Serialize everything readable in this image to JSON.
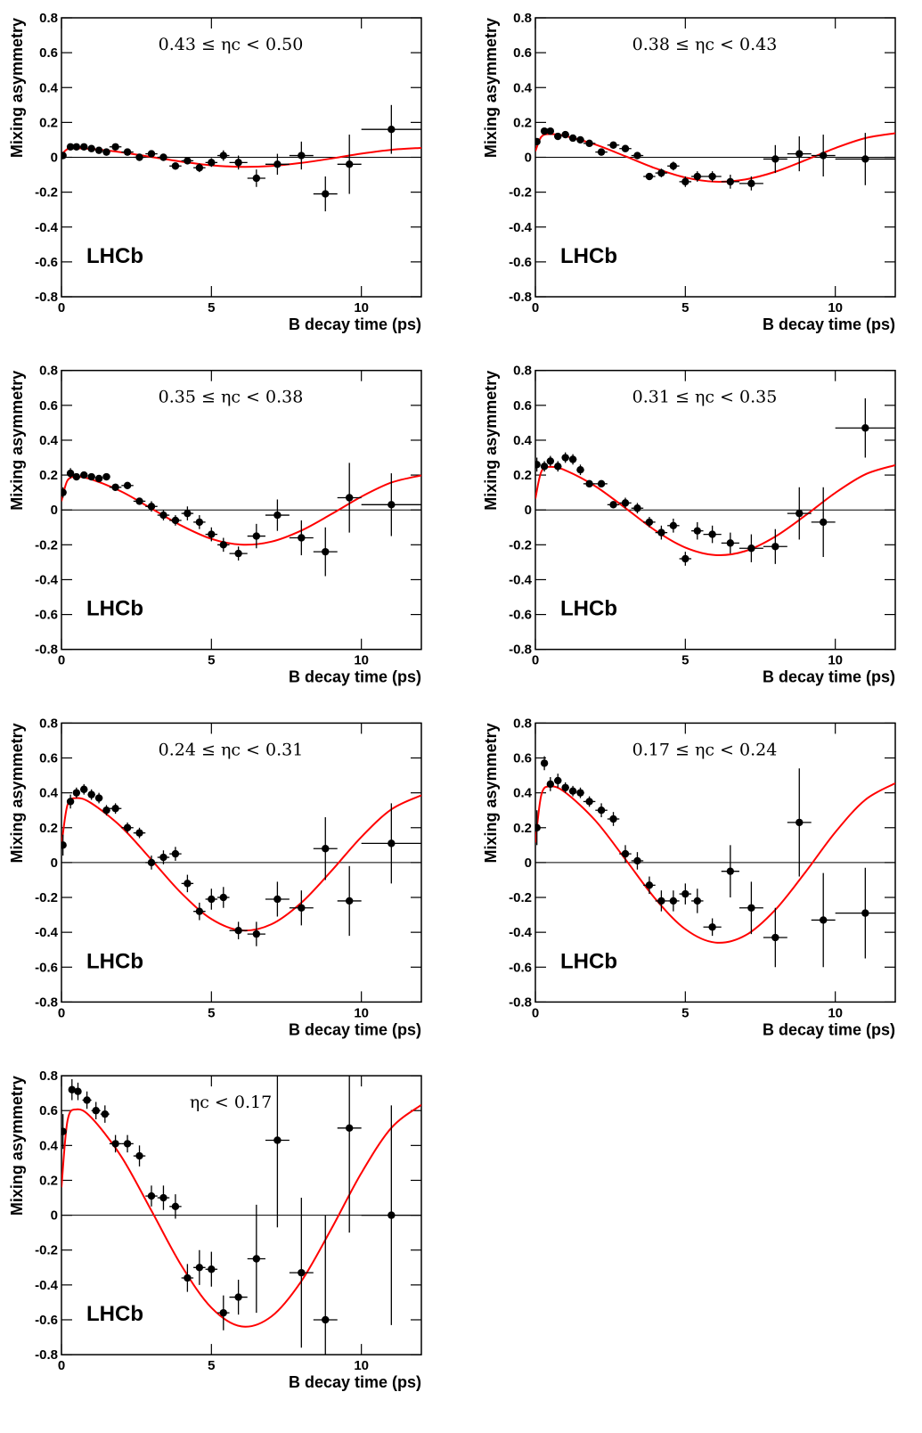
{
  "chart_data": [
    {
      "type": "scatter",
      "title": "0.43 ≤ ηc < 0.50",
      "xlabel": "B decay time (ps)",
      "ylabel": "Mixing asymmetry",
      "label": "LHCb",
      "xlim": [
        0,
        12
      ],
      "xticks": [
        0,
        5,
        10
      ],
      "ylim": [
        -0.8,
        0.8
      ],
      "yticks": [
        -0.8,
        -0.6,
        -0.4,
        -0.2,
        0,
        0.2,
        0.4,
        0.6,
        0.8
      ],
      "color": "#000000",
      "x": [
        0.05,
        0.3,
        0.5,
        0.75,
        1.0,
        1.25,
        1.5,
        1.8,
        2.2,
        2.6,
        3.0,
        3.4,
        3.8,
        4.2,
        4.6,
        5.0,
        5.4,
        5.9,
        6.5,
        7.2,
        8.0,
        8.8,
        9.6,
        11.0
      ],
      "x_errors": [
        0.05,
        0.1,
        0.1,
        0.125,
        0.125,
        0.125,
        0.125,
        0.2,
        0.2,
        0.2,
        0.2,
        0.2,
        0.2,
        0.2,
        0.2,
        0.2,
        0.2,
        0.3,
        0.3,
        0.4,
        0.4,
        0.4,
        0.4,
        1.0
      ],
      "values": [
        0.01,
        0.06,
        0.06,
        0.06,
        0.05,
        0.04,
        0.03,
        0.06,
        0.03,
        0.0,
        0.02,
        0.0,
        -0.05,
        -0.02,
        -0.06,
        -0.03,
        0.01,
        -0.03,
        -0.12,
        -0.04,
        0.01,
        -0.21,
        -0.04,
        0.16
      ],
      "errors": [
        0.01,
        0.01,
        0.01,
        0.01,
        0.01,
        0.01,
        0.01,
        0.01,
        0.015,
        0.015,
        0.015,
        0.02,
        0.02,
        0.02,
        0.025,
        0.025,
        0.03,
        0.04,
        0.05,
        0.06,
        0.08,
        0.1,
        0.17,
        0.14
      ],
      "fit": {
        "color": "#ff0000",
        "x": [
          0,
          0.2,
          0.5,
          1,
          2,
          3,
          4,
          5,
          6,
          7,
          8,
          9,
          10,
          11,
          12
        ],
        "values": [
          0.014,
          0.047,
          0.052,
          0.048,
          0.029,
          0.002,
          -0.025,
          -0.046,
          -0.055,
          -0.05,
          -0.032,
          -0.007,
          0.021,
          0.043,
          0.054
        ]
      }
    },
    {
      "type": "scatter",
      "title": "0.38 ≤ ηc < 0.43",
      "xlabel": "B decay time (ps)",
      "ylabel": "Mixing asymmetry",
      "label": "LHCb",
      "xlim": [
        0,
        12
      ],
      "xticks": [
        0,
        5,
        10
      ],
      "ylim": [
        -0.8,
        0.8
      ],
      "yticks": [
        -0.8,
        -0.6,
        -0.4,
        -0.2,
        0,
        0.2,
        0.4,
        0.6,
        0.8
      ],
      "color": "#000000",
      "x": [
        0.05,
        0.3,
        0.5,
        0.75,
        1.0,
        1.25,
        1.5,
        1.8,
        2.2,
        2.6,
        3.0,
        3.4,
        3.8,
        4.2,
        4.6,
        5.0,
        5.4,
        5.9,
        6.5,
        7.2,
        8.0,
        8.8,
        9.6,
        11.0
      ],
      "x_errors": [
        0.05,
        0.1,
        0.1,
        0.125,
        0.125,
        0.125,
        0.125,
        0.2,
        0.2,
        0.2,
        0.2,
        0.2,
        0.2,
        0.2,
        0.2,
        0.2,
        0.2,
        0.3,
        0.3,
        0.4,
        0.4,
        0.4,
        0.4,
        1.0
      ],
      "values": [
        0.09,
        0.15,
        0.15,
        0.12,
        0.13,
        0.11,
        0.1,
        0.08,
        0.03,
        0.07,
        0.05,
        0.01,
        -0.11,
        -0.09,
        -0.05,
        -0.14,
        -0.11,
        -0.11,
        -0.14,
        -0.15,
        -0.01,
        0.02,
        0.01,
        -0.01
      ],
      "errors": [
        0.02,
        0.02,
        0.01,
        0.015,
        0.015,
        0.015,
        0.015,
        0.015,
        0.02,
        0.02,
        0.02,
        0.02,
        0.02,
        0.025,
        0.025,
        0.03,
        0.03,
        0.03,
        0.04,
        0.04,
        0.08,
        0.1,
        0.12,
        0.15
      ],
      "fit": {
        "color": "#ff0000",
        "x": [
          0,
          0.2,
          0.5,
          1,
          2,
          3,
          4,
          5,
          6,
          7,
          8,
          9,
          10,
          11,
          12
        ],
        "values": [
          0.035,
          0.118,
          0.133,
          0.122,
          0.073,
          0.006,
          -0.063,
          -0.116,
          -0.14,
          -0.127,
          -0.083,
          -0.017,
          0.053,
          0.11,
          0.138
        ]
      }
    },
    {
      "type": "scatter",
      "title": "0.35 ≤ ηc < 0.38",
      "xlabel": "B decay time (ps)",
      "ylabel": "Mixing asymmetry",
      "label": "LHCb",
      "xlim": [
        0,
        12
      ],
      "xticks": [
        0,
        5,
        10
      ],
      "ylim": [
        -0.8,
        0.8
      ],
      "yticks": [
        -0.8,
        -0.6,
        -0.4,
        -0.2,
        0,
        0.2,
        0.4,
        0.6,
        0.8
      ],
      "color": "#000000",
      "x": [
        0.05,
        0.3,
        0.5,
        0.75,
        1.0,
        1.25,
        1.5,
        1.8,
        2.2,
        2.6,
        3.0,
        3.4,
        3.8,
        4.2,
        4.6,
        5.0,
        5.4,
        5.9,
        6.5,
        7.2,
        8.0,
        8.8,
        9.6,
        11.0
      ],
      "x_errors": [
        0.05,
        0.1,
        0.1,
        0.125,
        0.125,
        0.125,
        0.125,
        0.2,
        0.2,
        0.2,
        0.2,
        0.2,
        0.2,
        0.2,
        0.2,
        0.2,
        0.2,
        0.3,
        0.3,
        0.4,
        0.4,
        0.4,
        0.4,
        1.0
      ],
      "values": [
        0.1,
        0.21,
        0.19,
        0.2,
        0.19,
        0.18,
        0.19,
        0.13,
        0.14,
        0.05,
        0.02,
        -0.03,
        -0.06,
        -0.02,
        -0.07,
        -0.14,
        -0.2,
        -0.25,
        -0.15,
        -0.03,
        -0.16,
        -0.24,
        0.07,
        0.03
      ],
      "errors": [
        0.03,
        0.03,
        0.02,
        0.02,
        0.02,
        0.02,
        0.02,
        0.02,
        0.02,
        0.02,
        0.03,
        0.03,
        0.03,
        0.04,
        0.04,
        0.04,
        0.04,
        0.04,
        0.07,
        0.09,
        0.1,
        0.14,
        0.2,
        0.18
      ],
      "fit": {
        "color": "#ff0000",
        "x": [
          0,
          0.2,
          0.5,
          1,
          2,
          3,
          4,
          5,
          6,
          7,
          8,
          9,
          10,
          11,
          12
        ],
        "values": [
          0.05,
          0.169,
          0.19,
          0.175,
          0.105,
          0.008,
          -0.09,
          -0.166,
          -0.199,
          -0.182,
          -0.118,
          -0.024,
          0.076,
          0.157,
          0.198
        ]
      }
    },
    {
      "type": "scatter",
      "title": "0.31 ≤ ηc < 0.35",
      "xlabel": "B decay time (ps)",
      "ylabel": "Mixing asymmetry",
      "label": "LHCb",
      "xlim": [
        0,
        12
      ],
      "xticks": [
        0,
        5,
        10
      ],
      "ylim": [
        -0.8,
        0.8
      ],
      "yticks": [
        -0.8,
        -0.6,
        -0.4,
        -0.2,
        0,
        0.2,
        0.4,
        0.6,
        0.8
      ],
      "color": "#000000",
      "x": [
        0.05,
        0.3,
        0.5,
        0.75,
        1.0,
        1.25,
        1.5,
        1.8,
        2.2,
        2.6,
        3.0,
        3.4,
        3.8,
        4.2,
        4.6,
        5.0,
        5.4,
        5.9,
        6.5,
        7.2,
        8.0,
        8.8,
        9.6,
        11.0
      ],
      "x_errors": [
        0.05,
        0.1,
        0.1,
        0.125,
        0.125,
        0.125,
        0.125,
        0.2,
        0.2,
        0.2,
        0.2,
        0.2,
        0.2,
        0.2,
        0.2,
        0.2,
        0.2,
        0.3,
        0.3,
        0.4,
        0.4,
        0.4,
        0.4,
        1.0
      ],
      "values": [
        0.26,
        0.25,
        0.28,
        0.25,
        0.3,
        0.29,
        0.23,
        0.15,
        0.15,
        0.03,
        0.04,
        0.01,
        -0.07,
        -0.13,
        -0.09,
        -0.28,
        -0.12,
        -0.14,
        -0.19,
        -0.22,
        -0.21,
        -0.02,
        -0.07,
        0.47
      ],
      "errors": [
        0.04,
        0.03,
        0.03,
        0.03,
        0.03,
        0.03,
        0.03,
        0.02,
        0.02,
        0.02,
        0.03,
        0.03,
        0.03,
        0.04,
        0.04,
        0.04,
        0.05,
        0.05,
        0.06,
        0.08,
        0.1,
        0.15,
        0.2,
        0.17
      ],
      "fit": {
        "color": "#ff0000",
        "x": [
          0,
          0.2,
          0.5,
          1,
          2,
          3,
          4,
          5,
          6,
          7,
          8,
          9,
          10,
          11,
          12
        ],
        "values": [
          0.065,
          0.22,
          0.247,
          0.227,
          0.136,
          0.011,
          -0.118,
          -0.216,
          -0.259,
          -0.236,
          -0.153,
          -0.032,
          0.098,
          0.204,
          0.257
        ]
      }
    },
    {
      "type": "scatter",
      "title": "0.24 ≤ ηc < 0.31",
      "xlabel": "B decay time (ps)",
      "ylabel": "Mixing asymmetry",
      "label": "LHCb",
      "xlim": [
        0,
        12
      ],
      "xticks": [
        0,
        5,
        10
      ],
      "ylim": [
        -0.8,
        0.8
      ],
      "yticks": [
        -0.8,
        -0.6,
        -0.4,
        -0.2,
        0,
        0.2,
        0.4,
        0.6,
        0.8
      ],
      "color": "#000000",
      "x": [
        0.05,
        0.3,
        0.5,
        0.75,
        1.0,
        1.25,
        1.5,
        1.8,
        2.2,
        2.6,
        3.0,
        3.4,
        3.8,
        4.2,
        4.6,
        5.0,
        5.4,
        5.9,
        6.5,
        7.2,
        8.0,
        8.8,
        9.6,
        11.0
      ],
      "x_errors": [
        0.05,
        0.1,
        0.1,
        0.125,
        0.125,
        0.125,
        0.125,
        0.2,
        0.2,
        0.2,
        0.2,
        0.2,
        0.2,
        0.2,
        0.2,
        0.2,
        0.2,
        0.3,
        0.3,
        0.4,
        0.4,
        0.4,
        0.4,
        1.0
      ],
      "values": [
        0.1,
        0.35,
        0.4,
        0.42,
        0.39,
        0.37,
        0.3,
        0.31,
        0.2,
        0.17,
        0.0,
        0.03,
        0.05,
        -0.12,
        -0.28,
        -0.21,
        -0.2,
        -0.39,
        -0.41,
        -0.21,
        -0.26,
        0.08,
        -0.22,
        0.11
      ],
      "errors": [
        0.06,
        0.04,
        0.03,
        0.03,
        0.03,
        0.03,
        0.03,
        0.03,
        0.03,
        0.03,
        0.04,
        0.04,
        0.04,
        0.05,
        0.05,
        0.06,
        0.06,
        0.05,
        0.07,
        0.1,
        0.1,
        0.18,
        0.2,
        0.23
      ],
      "fit": {
        "color": "#ff0000",
        "x": [
          0,
          0.2,
          0.5,
          1,
          2,
          3,
          4,
          5,
          6,
          7,
          8,
          9,
          10,
          11,
          12
        ],
        "values": [
          0.098,
          0.33,
          0.37,
          0.34,
          0.204,
          0.016,
          -0.176,
          -0.324,
          -0.389,
          -0.354,
          -0.23,
          -0.048,
          0.147,
          0.305,
          0.386
        ]
      }
    },
    {
      "type": "scatter",
      "title": "0.17 ≤ ηc < 0.24",
      "xlabel": "B decay time (ps)",
      "ylabel": "Mixing asymmetry",
      "label": "LHCb",
      "xlim": [
        0,
        12
      ],
      "xticks": [
        0,
        5,
        10
      ],
      "ylim": [
        -0.8,
        0.8
      ],
      "yticks": [
        -0.8,
        -0.6,
        -0.4,
        -0.2,
        0,
        0.2,
        0.4,
        0.6,
        0.8
      ],
      "color": "#000000",
      "x": [
        0.05,
        0.3,
        0.5,
        0.75,
        1.0,
        1.25,
        1.5,
        1.8,
        2.2,
        2.6,
        3.0,
        3.4,
        3.8,
        4.2,
        4.6,
        5.0,
        5.4,
        5.9,
        6.5,
        7.2,
        8.0,
        8.8,
        9.6,
        11.0
      ],
      "x_errors": [
        0.05,
        0.1,
        0.1,
        0.125,
        0.125,
        0.125,
        0.125,
        0.2,
        0.2,
        0.2,
        0.2,
        0.2,
        0.2,
        0.2,
        0.2,
        0.2,
        0.2,
        0.3,
        0.3,
        0.4,
        0.4,
        0.4,
        0.4,
        1.0
      ],
      "values": [
        0.2,
        0.57,
        0.45,
        0.47,
        0.43,
        0.41,
        0.4,
        0.35,
        0.3,
        0.25,
        0.05,
        0.01,
        -0.13,
        -0.22,
        -0.22,
        -0.18,
        -0.22,
        -0.37,
        -0.05,
        -0.26,
        -0.43,
        0.23,
        -0.33,
        -0.29
      ],
      "errors": [
        0.1,
        0.04,
        0.04,
        0.04,
        0.03,
        0.03,
        0.03,
        0.03,
        0.04,
        0.04,
        0.05,
        0.05,
        0.05,
        0.06,
        0.06,
        0.06,
        0.07,
        0.05,
        0.15,
        0.15,
        0.17,
        0.31,
        0.27,
        0.26
      ],
      "fit": {
        "color": "#ff0000",
        "x": [
          0,
          0.2,
          0.5,
          1,
          2,
          3,
          4,
          5,
          6,
          7,
          8,
          9,
          10,
          11,
          12
        ],
        "values": [
          0.115,
          0.389,
          0.437,
          0.402,
          0.241,
          0.019,
          -0.208,
          -0.382,
          -0.459,
          -0.418,
          -0.271,
          -0.056,
          0.174,
          0.36,
          0.455
        ]
      }
    },
    {
      "type": "scatter",
      "title": "ηc < 0.17",
      "xlabel": "B decay time (ps)",
      "ylabel": "Mixing asymmetry",
      "label": "LHCb",
      "xlim": [
        0,
        12
      ],
      "xticks": [
        0,
        5,
        10
      ],
      "ylim": [
        -0.8,
        0.8
      ],
      "yticks": [
        -0.8,
        -0.6,
        -0.4,
        -0.2,
        0,
        0.2,
        0.4,
        0.6,
        0.8
      ],
      "color": "#000000",
      "x": [
        0.05,
        0.35,
        0.55,
        0.85,
        1.15,
        1.45,
        1.8,
        2.2,
        2.6,
        3.0,
        3.4,
        3.8,
        4.2,
        4.6,
        5.0,
        5.4,
        5.9,
        6.5,
        7.2,
        8.0,
        8.8,
        9.6,
        11.0
      ],
      "x_errors": [
        0.05,
        0.1,
        0.1,
        0.15,
        0.15,
        0.15,
        0.2,
        0.2,
        0.2,
        0.2,
        0.2,
        0.2,
        0.2,
        0.2,
        0.2,
        0.2,
        0.3,
        0.3,
        0.4,
        0.4,
        0.4,
        0.4,
        1.0
      ],
      "values": [
        0.48,
        0.72,
        0.71,
        0.66,
        0.6,
        0.58,
        0.41,
        0.41,
        0.34,
        0.11,
        0.1,
        0.05,
        -0.36,
        -0.3,
        -0.31,
        -0.56,
        -0.47,
        -0.25,
        0.43,
        -0.33,
        -0.6,
        0.5,
        0.0
      ],
      "errors": [
        0.1,
        0.06,
        0.05,
        0.05,
        0.05,
        0.05,
        0.05,
        0.05,
        0.06,
        0.06,
        0.07,
        0.07,
        0.08,
        0.1,
        0.1,
        0.1,
        0.1,
        0.31,
        0.5,
        0.43,
        0.6,
        0.6,
        0.63
      ],
      "fit": {
        "color": "#ff0000",
        "x": [
          0,
          0.2,
          0.5,
          1,
          2,
          3,
          4,
          5,
          6,
          7,
          8,
          9,
          10,
          11,
          12
        ],
        "values": [
          0.16,
          0.541,
          0.607,
          0.559,
          0.335,
          0.026,
          -0.289,
          -0.531,
          -0.638,
          -0.581,
          -0.378,
          -0.078,
          0.242,
          0.501,
          0.633
        ]
      }
    }
  ]
}
